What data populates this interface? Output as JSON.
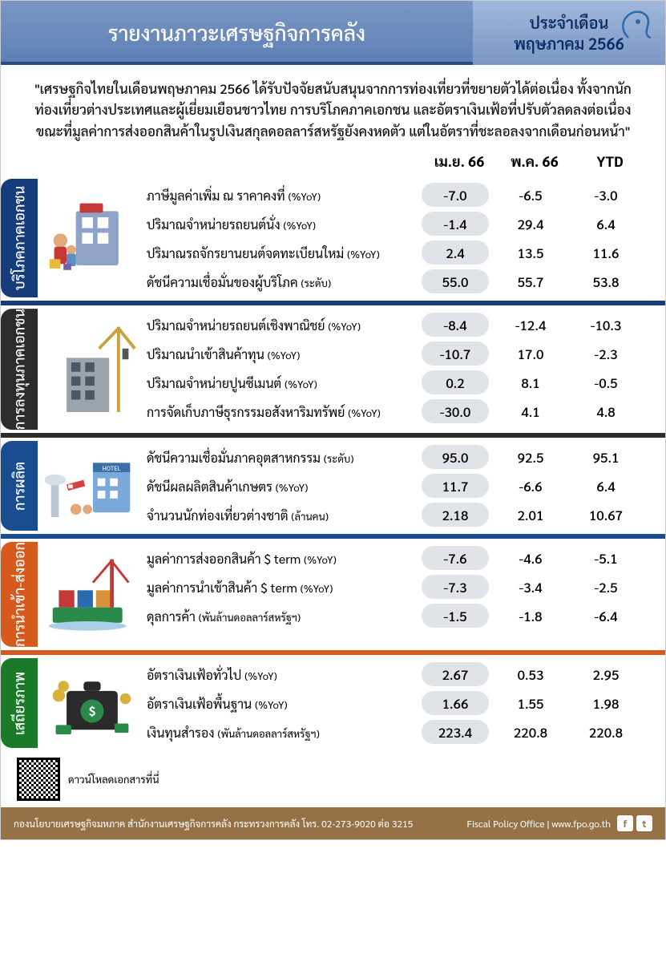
{
  "header": {
    "title": "รายงานภาวะเศรษฐกิจการคลัง",
    "period_label": "ประจำเดือน",
    "period_value": "พฤษภาคม 2566"
  },
  "summary": "\"เศรษฐกิจไทยในเดือนพฤษภาคม 2566 ได้รับปัจจัยสนับสนุนจากการท่องเที่ยวที่ขยายตัวได้ต่อเนื่อง ทั้งจากนักท่องเที่ยวต่างประเทศและผู้เยี่ยมเยือนชาวไทย การบริโภคภาคเอกชน และอัตราเงินเฟ้อที่ปรับตัวลดลงต่อเนื่อง ขณะที่มูลค่าการส่งออกสินค้าในรูปเงินสกุลดอลลาร์สหรัฐยังคงหดตัว แต่ในอัตราที่ชะลอลงจากเดือนก่อนหน้า\"",
  "columns": [
    "เม.ย. 66",
    "พ.ค. 66",
    "YTD"
  ],
  "sections": [
    {
      "id": "consumption",
      "title": "บริโภคภาคเอกชน",
      "color": "#163c7c",
      "border": "#163c7c",
      "rows": [
        {
          "label": "ภาษีมูลค่าเพิ่ม ณ ราคาคงที่",
          "unit": "(%YoY)",
          "v": [
            "-7.0",
            "-6.5",
            "-3.0"
          ]
        },
        {
          "label": "ปริมาณจำหน่ายรถยนต์นั่ง",
          "unit": "(%YoY)",
          "v": [
            "-1.4",
            "29.4",
            "6.4"
          ]
        },
        {
          "label": "ปริมาณรถจักรยานยนต์จดทะเบียนใหม่",
          "unit": "(%YoY)",
          "v": [
            "2.4",
            "13.5",
            "11.6"
          ]
        },
        {
          "label": "ดัชนีความเชื่อมั่นของผู้บริโภค",
          "unit": "(ระดับ)",
          "v": [
            "55.0",
            "55.7",
            "53.8"
          ]
        }
      ]
    },
    {
      "id": "investment",
      "title": "การลงทุนภาคเอกชน",
      "color": "#2c2c2c",
      "border": "#2c2c2c",
      "rows": [
        {
          "label": "ปริมาณจำหน่ายรถยนต์เชิงพาณิชย์",
          "unit": "(%YoY)",
          "v": [
            "-8.4",
            "-12.4",
            "-10.3"
          ]
        },
        {
          "label": "ปริมาณนำเข้าสินค้าทุน",
          "unit": "(%YoY)",
          "v": [
            "-10.7",
            "17.0",
            "-2.3"
          ]
        },
        {
          "label": "ปริมาณจำหน่ายปูนซีเมนต์",
          "unit": "(%YoY)",
          "v": [
            "0.2",
            "8.1",
            "-0.5"
          ]
        },
        {
          "label": "การจัดเก็บภาษีธุรกรรมอสังหาริมทรัพย์",
          "unit": "(%YoY)",
          "v": [
            "-30.0",
            "4.1",
            "4.8"
          ]
        }
      ]
    },
    {
      "id": "production",
      "title": "การผลิต",
      "color": "#1a4d8f",
      "border": "#1a4d8f",
      "rows": [
        {
          "label": "ดัชนีความเชื่อมั่นภาคอุตสาหกรรม",
          "unit": "(ระดับ)",
          "v": [
            "95.0",
            "92.5",
            "95.1"
          ]
        },
        {
          "label": "ดัชนีผลผลิตสินค้าเกษตร",
          "unit": "(%YoY)",
          "v": [
            "11.7",
            "-6.6",
            "6.4"
          ]
        },
        {
          "label": "จำนวนนักท่องเที่ยวต่างชาติ",
          "unit": "(ล้านคน)",
          "v": [
            "2.18",
            "2.01",
            "10.67"
          ]
        }
      ]
    },
    {
      "id": "trade",
      "title": "การนำเข้า-ส่งออก",
      "color": "#d65a1e",
      "border": "#d65a1e",
      "rows": [
        {
          "label": "มูลค่าการส่งออกสินค้า $ term",
          "unit": "(%YoY)",
          "v": [
            "-7.6",
            "-4.6",
            "-5.1"
          ]
        },
        {
          "label": "มูลค่าการนำเข้าสินค้า $ term",
          "unit": "(%YoY)",
          "v": [
            "-7.3",
            "-3.4",
            "-2.5"
          ]
        },
        {
          "label": "ดุลการค้า",
          "unit": "(พันล้านดอลลาร์สหรัฐฯ)",
          "v": [
            "-1.5",
            "-1.8",
            "-6.4"
          ]
        }
      ]
    },
    {
      "id": "stability",
      "title": "เสถียรภาพ",
      "color": "#1a7a2a",
      "border": "#1a7a2a",
      "rows": [
        {
          "label": "อัตราเงินเฟ้อทั่วไป",
          "unit": "(%YoY)",
          "v": [
            "2.67",
            "0.53",
            "2.95"
          ]
        },
        {
          "label": "อัตราเงินเฟ้อพื้นฐาน",
          "unit": "(%YoY)",
          "v": [
            "1.66",
            "1.55",
            "1.98"
          ]
        },
        {
          "label": "เงินทุนสำรอง",
          "unit": "(พันล้านดอลลาร์สหรัฐฯ)",
          "v": [
            "223.4",
            "220.8",
            "220.8"
          ]
        }
      ]
    }
  ],
  "download_text": "ดาวน์โหลดเอกสารที่นี่",
  "footer": {
    "left": "กองนโยบายเศรษฐกิจมหภาค สำนักงานเศรษฐกิจการคลัง กระทรวงการคลัง โทร. 02-273-9020 ต่อ 3215",
    "right": "Fiscal Policy Office | www.fpo.go.th"
  }
}
